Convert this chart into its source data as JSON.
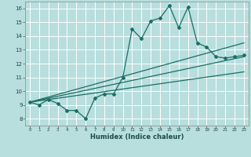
{
  "title": "",
  "xlabel": "Humidex (Indice chaleur)",
  "background_color": "#b8dede",
  "grid_color": "#ffffff",
  "line_color": "#1a6e65",
  "xlim": [
    -0.5,
    23.5
  ],
  "ylim": [
    7.5,
    16.5
  ],
  "xticks": [
    0,
    1,
    2,
    3,
    4,
    5,
    6,
    7,
    8,
    9,
    10,
    11,
    12,
    13,
    14,
    15,
    16,
    17,
    18,
    19,
    20,
    21,
    22,
    23
  ],
  "yticks": [
    8,
    9,
    10,
    11,
    12,
    13,
    14,
    15,
    16
  ],
  "main_x": [
    0,
    1,
    2,
    3,
    4,
    5,
    6,
    7,
    8,
    9,
    10,
    11,
    12,
    13,
    14,
    15,
    16,
    17,
    18,
    19,
    20,
    21,
    22,
    23
  ],
  "main_y": [
    9.2,
    9.0,
    9.4,
    9.1,
    8.6,
    8.6,
    8.0,
    9.5,
    9.8,
    9.8,
    11.0,
    14.5,
    13.8,
    15.1,
    15.3,
    16.2,
    14.6,
    16.1,
    13.5,
    13.2,
    12.5,
    12.4,
    12.5,
    12.6
  ],
  "reg_line1_x": [
    0,
    23
  ],
  "reg_line1_y": [
    9.2,
    13.5
  ],
  "reg_line2_x": [
    0,
    23
  ],
  "reg_line2_y": [
    9.2,
    12.5
  ],
  "reg_line3_x": [
    0,
    23
  ],
  "reg_line3_y": [
    9.2,
    11.4
  ]
}
